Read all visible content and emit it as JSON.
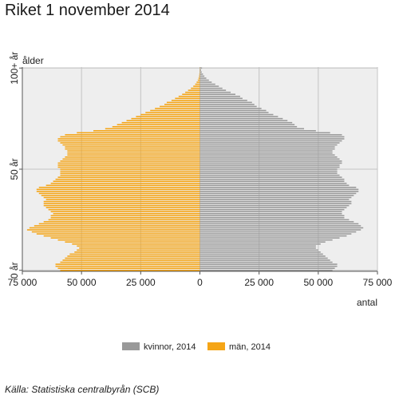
{
  "title": "Riket 1 november 2014",
  "source": "Källa: Statistiska centralbyrån (SCB)",
  "colors": {
    "kvinnor": "#999999",
    "man": "#f5a516",
    "plot_bg": "#eeeeee",
    "grid": "#c4c4c4"
  },
  "chart_data": {
    "type": "bar",
    "orientation": "horizontal",
    "title": "Riket 1 november 2014",
    "ylabel": "ålder",
    "xlabel": "antal",
    "y_tick_labels": [
      "0 år",
      "50 år",
      "100+ år"
    ],
    "x_tick_labels": [
      "75 000",
      "50 000",
      "25 000",
      "0",
      "25 000",
      "50 000",
      "75 000"
    ],
    "xlim": [
      -75000,
      75000
    ],
    "ages": [
      0,
      1,
      2,
      3,
      4,
      5,
      6,
      7,
      8,
      9,
      10,
      11,
      12,
      13,
      14,
      15,
      16,
      17,
      18,
      19,
      20,
      21,
      22,
      23,
      24,
      25,
      26,
      27,
      28,
      29,
      30,
      31,
      32,
      33,
      34,
      35,
      36,
      37,
      38,
      39,
      40,
      41,
      42,
      43,
      44,
      45,
      46,
      47,
      48,
      49,
      50,
      51,
      52,
      53,
      54,
      55,
      56,
      57,
      58,
      59,
      60,
      61,
      62,
      63,
      64,
      65,
      66,
      67,
      68,
      69,
      70,
      71,
      72,
      73,
      74,
      75,
      76,
      77,
      78,
      79,
      80,
      81,
      82,
      83,
      84,
      85,
      86,
      87,
      88,
      89,
      90,
      91,
      92,
      93,
      94,
      95,
      96,
      97,
      98,
      99,
      100
    ],
    "series": [
      {
        "name": "kvinnor, 2014",
        "color": "#999999",
        "values": [
          56000,
          57000,
          58000,
          58000,
          56000,
          55000,
          54000,
          53000,
          52000,
          51000,
          50000,
          49000,
          49000,
          51000,
          53000,
          56000,
          59000,
          62000,
          64000,
          66000,
          68000,
          69000,
          68000,
          67000,
          65000,
          63000,
          61000,
          61000,
          60000,
          60000,
          61000,
          62000,
          63000,
          64000,
          64000,
          63000,
          64000,
          65000,
          66000,
          67000,
          67000,
          66000,
          63000,
          62000,
          61000,
          61000,
          60000,
          59000,
          58000,
          58000,
          58000,
          59000,
          59000,
          60000,
          60000,
          59000,
          58000,
          57000,
          56000,
          56000,
          57000,
          57000,
          58000,
          59000,
          60000,
          61000,
          61000,
          60000,
          55000,
          49000,
          44000,
          41000,
          40000,
          39000,
          37000,
          35000,
          33000,
          31000,
          29000,
          28000,
          26000,
          24000,
          23000,
          22000,
          20000,
          18000,
          17000,
          15000,
          13000,
          11000,
          9500,
          8000,
          6500,
          5000,
          3800,
          2700,
          1900,
          1300,
          800,
          500,
          900
        ]
      },
      {
        "name": "män, 2014",
        "color": "#f5a516",
        "values": [
          59000,
          60000,
          61000,
          61000,
          59000,
          58000,
          57000,
          56000,
          55000,
          53000,
          52000,
          51000,
          52000,
          54000,
          57000,
          60000,
          63000,
          66000,
          69000,
          71000,
          73000,
          72000,
          70000,
          68000,
          66000,
          64000,
          63000,
          63000,
          62000,
          63000,
          64000,
          65000,
          66000,
          66000,
          66000,
          65000,
          66000,
          67000,
          68000,
          69000,
          69000,
          68000,
          65000,
          63000,
          62000,
          61000,
          60000,
          59000,
          59000,
          59000,
          59000,
          60000,
          60000,
          60000,
          59000,
          58000,
          57000,
          56000,
          56000,
          56000,
          57000,
          57000,
          58000,
          59000,
          60000,
          60000,
          59000,
          57000,
          52000,
          45000,
          40000,
          37000,
          35000,
          33000,
          31000,
          29000,
          27000,
          25000,
          23000,
          21000,
          19000,
          17000,
          15000,
          14000,
          12000,
          10500,
          9000,
          7500,
          6200,
          5000,
          3800,
          2800,
          2000,
          1400,
          900,
          600,
          400,
          250,
          150,
          100,
          100
        ]
      }
    ],
    "legend": {
      "position": "bottom",
      "entries": [
        "kvinnor, 2014",
        "män, 2014"
      ]
    },
    "grid": true
  }
}
